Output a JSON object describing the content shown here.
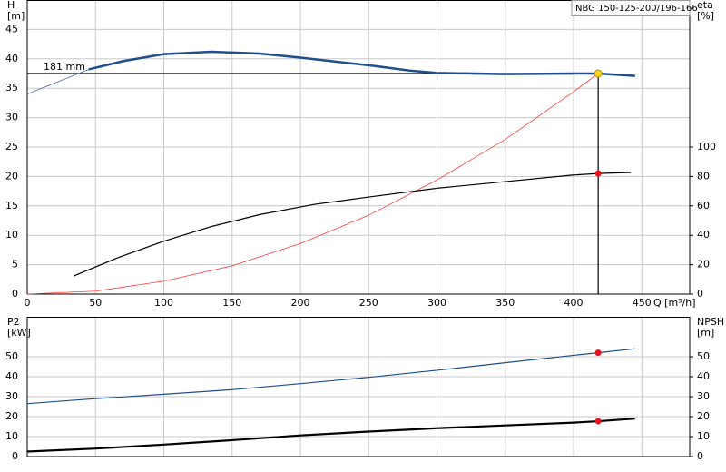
{
  "chart_data": [
    {
      "type": "line",
      "title": "NBG 150-125-200/196-166",
      "ylabel": "H",
      "yunit": "[m]",
      "y2label": "eta",
      "y2unit": "[%]",
      "xlabel": "Q [m³/h]",
      "annotation": "181 mm",
      "xlim": [
        0,
        485
      ],
      "xticks": [
        0,
        50,
        100,
        150,
        200,
        250,
        300,
        350,
        400,
        450
      ],
      "ylim": [
        0,
        50
      ],
      "yticks": [
        0,
        5,
        10,
        15,
        20,
        25,
        30,
        35,
        40,
        45
      ],
      "y2lim": [
        0,
        200
      ],
      "y2ticks": [
        0,
        20,
        40,
        60,
        80,
        100
      ],
      "grid": true,
      "duty_point": {
        "q": 418,
        "h": 37.5,
        "color": "#ffd21f"
      },
      "series": [
        {
          "color": "#1f4e8c",
          "width": 2.5,
          "x": [
            45,
            70,
            100,
            135,
            170,
            200,
            250,
            280,
            300,
            350,
            400,
            418,
            445
          ],
          "values": [
            38.2,
            39.6,
            40.8,
            41.2,
            40.9,
            40.2,
            38.9,
            38.0,
            37.6,
            37.4,
            37.5,
            37.5,
            37.1
          ]
        },
        {
          "color": "#4a6fa5",
          "width": 0.8,
          "x": [
            0,
            45
          ],
          "values": [
            34,
            38.2
          ]
        },
        {
          "color": "#ff3b3b",
          "width": 0.8,
          "x": [
            0,
            50,
            100,
            150,
            200,
            250,
            300,
            350,
            400,
            418
          ],
          "values": [
            0,
            0.5,
            2.2,
            4.8,
            8.6,
            13.4,
            19.4,
            26.3,
            34.4,
            37.5
          ]
        },
        {
          "color": "#000000",
          "width": 1.2,
          "axis": "y2",
          "marker_color": "#e8141b",
          "x": [
            34,
            67,
            100,
            135,
            170,
            210,
            250,
            300,
            350,
            400,
            418,
            442
          ],
          "values": [
            12.3,
            25,
            36,
            46,
            54,
            61,
            66,
            72,
            76.5,
            81,
            82,
            82.7
          ]
        }
      ]
    },
    {
      "type": "line",
      "ylabel": "P2",
      "yunit": "[kW]",
      "y2label": "NPSH",
      "y2unit": "[m]",
      "xlim": [
        0,
        485
      ],
      "xticks": [
        0,
        50,
        100,
        150,
        200,
        250,
        300,
        350,
        400,
        450
      ],
      "ylim": [
        0,
        70
      ],
      "yticks": [
        0,
        10,
        20,
        30,
        40,
        50
      ],
      "y2lim": [
        0,
        70
      ],
      "y2ticks": [
        0,
        10,
        20,
        30,
        40,
        50
      ],
      "grid": true,
      "duty_point": {
        "q": 418
      },
      "series": [
        {
          "color": "#1f4e8c",
          "width": 1.2,
          "marker_color": "#e8141b",
          "x": [
            0,
            50,
            100,
            150,
            200,
            250,
            300,
            350,
            400,
            418,
            445
          ],
          "values": [
            26.5,
            29,
            31.2,
            33.5,
            36.5,
            39.7,
            43.2,
            47,
            50.7,
            52,
            54
          ]
        },
        {
          "color": "#000000",
          "width": 2.2,
          "axis": "y2",
          "marker_color": "#e8141b",
          "x": [
            0,
            50,
            100,
            150,
            200,
            250,
            300,
            350,
            400,
            418,
            445
          ],
          "values": [
            2.5,
            4,
            6,
            8.2,
            10.6,
            12.5,
            14.2,
            15.6,
            17,
            17.7,
            19
          ]
        }
      ]
    }
  ]
}
